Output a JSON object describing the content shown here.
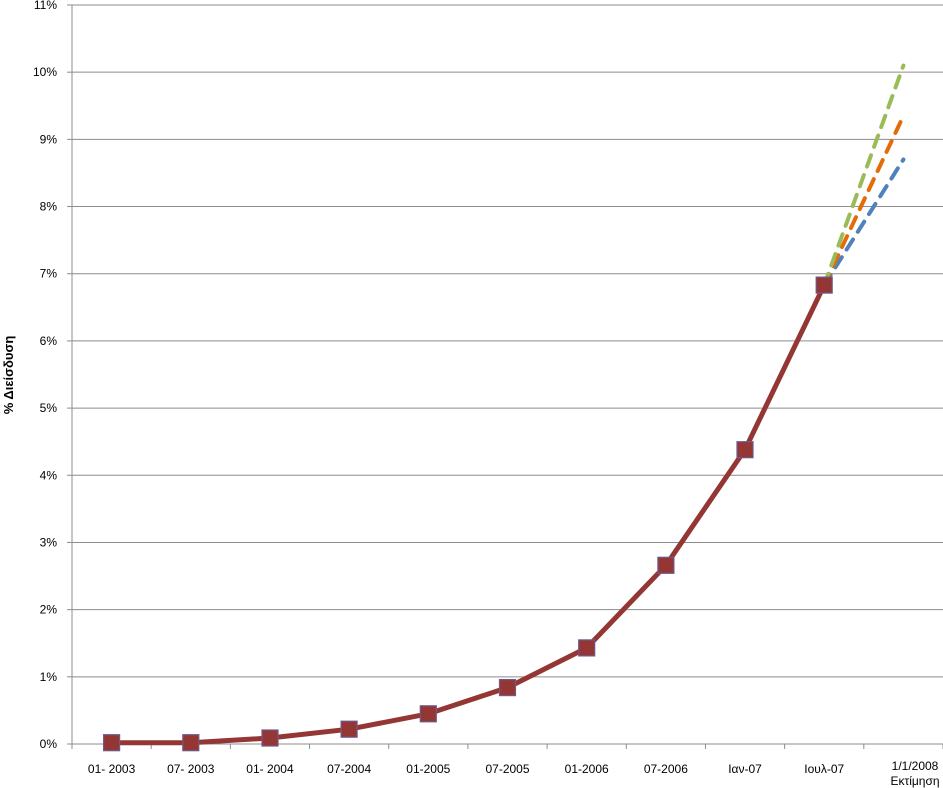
{
  "chart_data": {
    "type": "line",
    "ylabel": "% Διείσδυση",
    "categories": [
      "01- 2003",
      "07- 2003",
      "01- 2004",
      "07-2004",
      "01-2005",
      "07-2005",
      "01-2006",
      "07-2006",
      "Ιαν-07",
      "Ιουλ-07",
      "1/1/2008"
    ],
    "last_category_sublabel": "Εκτίμηση",
    "ylim": [
      0,
      11
    ],
    "yticks": [
      "0%",
      "1%",
      "2%",
      "3%",
      "4%",
      "5%",
      "6%",
      "7%",
      "8%",
      "9%",
      "10%",
      "11%"
    ],
    "grid": true,
    "legend": "none",
    "series": [
      {
        "values": [
          0.02,
          0.02,
          0.09,
          0.22,
          0.45,
          0.84,
          1.43,
          2.66,
          4.38,
          6.83,
          null
        ],
        "color": "#943634",
        "style": "solid-markers"
      },
      {
        "values": [
          null,
          null,
          null,
          null,
          null,
          null,
          null,
          null,
          null,
          6.83,
          10.1
        ],
        "color": "#9BBB59",
        "style": "dashed"
      },
      {
        "values": [
          null,
          null,
          null,
          null,
          null,
          null,
          null,
          null,
          null,
          6.83,
          9.35
        ],
        "color": "#E36C09",
        "style": "dashed"
      },
      {
        "values": [
          null,
          null,
          null,
          null,
          null,
          null,
          null,
          null,
          null,
          6.83,
          8.7
        ],
        "color": "#4F81BD",
        "style": "dashed"
      }
    ]
  }
}
